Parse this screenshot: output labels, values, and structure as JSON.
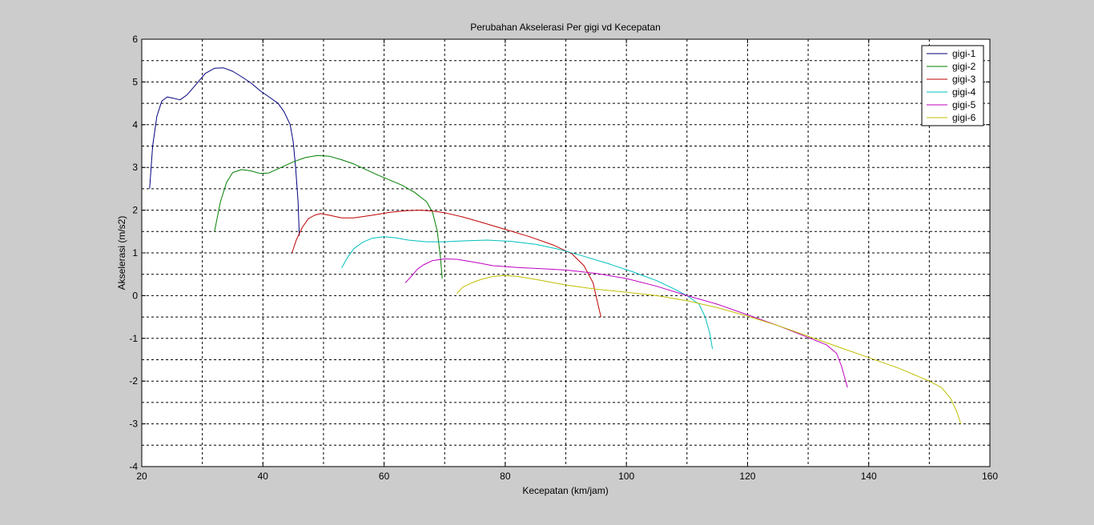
{
  "chart_data": {
    "type": "line",
    "title": "Perubahan Akselerasi Per gigi vd Kecepatan",
    "xlabel": "Kecepatan (km/jam)",
    "ylabel": "Akselerasi (m/s2)",
    "xlim": [
      20,
      160
    ],
    "ylim": [
      -4,
      6
    ],
    "xticks": [
      "20",
      "40",
      "60",
      "80",
      "100",
      "120",
      "140",
      "160"
    ],
    "yticks": [
      "-4",
      "-3",
      "-2",
      "-1",
      "0",
      "1",
      "2",
      "3",
      "4",
      "5",
      "6"
    ],
    "grid": true,
    "legend_position": "top-right",
    "series": [
      {
        "name": "gigi-1",
        "color": "#00007f",
        "x": [
          21.3,
          21.8,
          22.5,
          23.3,
          24.2,
          25.2,
          26.3,
          27.5,
          29.0,
          30.5,
          32.0,
          33.5,
          35.0,
          36.5,
          38.0,
          39.5,
          41.0,
          42.5,
          43.5,
          44.5,
          45.0,
          45.4,
          45.8,
          46.0
        ],
        "y": [
          2.5,
          3.5,
          4.2,
          4.55,
          4.65,
          4.62,
          4.58,
          4.7,
          4.95,
          5.2,
          5.32,
          5.33,
          5.25,
          5.12,
          4.98,
          4.8,
          4.65,
          4.5,
          4.3,
          4.0,
          3.6,
          3.0,
          2.2,
          1.4
        ]
      },
      {
        "name": "gigi-2",
        "color": "#007f00",
        "x": [
          32.0,
          33.0,
          34.0,
          35.0,
          36.5,
          38.0,
          39.5,
          41.0,
          43.0,
          45.0,
          47.0,
          49.0,
          51.0,
          53.0,
          55.0,
          57.0,
          59.0,
          61.0,
          63.0,
          65.0,
          67.0,
          68.0,
          68.8,
          69.3,
          69.6
        ],
        "y": [
          1.5,
          2.2,
          2.65,
          2.88,
          2.95,
          2.92,
          2.86,
          2.87,
          3.0,
          3.13,
          3.23,
          3.28,
          3.26,
          3.18,
          3.08,
          2.95,
          2.82,
          2.7,
          2.58,
          2.42,
          2.2,
          1.95,
          1.5,
          0.9,
          0.4
        ]
      },
      {
        "name": "gigi-3",
        "color": "#bf0000",
        "x": [
          44.8,
          45.5,
          46.5,
          47.5,
          48.5,
          49.5,
          51.0,
          53.0,
          55.0,
          58.0,
          61.0,
          64.0,
          66.0,
          68.0,
          70.0,
          73.0,
          76.0,
          80.0,
          84.0,
          88.0,
          91.0,
          93.0,
          94.5,
          95.3,
          95.8
        ],
        "y": [
          1.0,
          1.3,
          1.6,
          1.8,
          1.88,
          1.92,
          1.88,
          1.82,
          1.82,
          1.88,
          1.95,
          1.99,
          2.0,
          1.98,
          1.94,
          1.84,
          1.72,
          1.55,
          1.38,
          1.18,
          0.98,
          0.7,
          0.3,
          -0.2,
          -0.5
        ]
      },
      {
        "name": "gigi-4",
        "color": "#00bfbf",
        "x": [
          53.0,
          54.0,
          55.0,
          56.5,
          58.0,
          60.0,
          62.0,
          64.0,
          67.0,
          70.0,
          73.0,
          77.0,
          81.0,
          85.0,
          89.0,
          93.0,
          97.0,
          101.0,
          105.0,
          108.0,
          110.0,
          112.0,
          113.0,
          113.8,
          114.2
        ],
        "y": [
          0.65,
          0.9,
          1.1,
          1.25,
          1.34,
          1.38,
          1.35,
          1.3,
          1.26,
          1.26,
          1.28,
          1.3,
          1.27,
          1.2,
          1.08,
          0.92,
          0.75,
          0.56,
          0.35,
          0.15,
          0.0,
          -0.2,
          -0.5,
          -0.9,
          -1.25
        ]
      },
      {
        "name": "gigi-5",
        "color": "#bf00bf",
        "x": [
          63.5,
          64.5,
          65.5,
          66.5,
          68.0,
          70.0,
          72.0,
          75.0,
          78.0,
          82.0,
          86.0,
          90.0,
          95.0,
          100.0,
          105.0,
          110.0,
          115.0,
          120.0,
          125.0,
          130.0,
          133.0,
          134.7,
          135.5,
          136.0,
          136.5
        ],
        "y": [
          0.3,
          0.45,
          0.62,
          0.72,
          0.82,
          0.86,
          0.85,
          0.78,
          0.7,
          0.66,
          0.63,
          0.6,
          0.52,
          0.4,
          0.22,
          0.0,
          -0.2,
          -0.45,
          -0.7,
          -0.98,
          -1.15,
          -1.35,
          -1.65,
          -1.9,
          -2.15
        ]
      },
      {
        "name": "gigi-6",
        "color": "#bfbf00",
        "x": [
          72.0,
          73.0,
          74.5,
          76.0,
          78.0,
          80.0,
          82.0,
          85.0,
          90.0,
          95.0,
          100.0,
          105.0,
          110.0,
          115.0,
          120.0,
          125.0,
          130.0,
          135.0,
          140.0,
          145.0,
          148.0,
          150.0,
          152.0,
          153.5,
          154.5,
          155.2
        ],
        "y": [
          0.05,
          0.2,
          0.3,
          0.38,
          0.45,
          0.47,
          0.45,
          0.38,
          0.25,
          0.15,
          0.08,
          0.0,
          -0.12,
          -0.28,
          -0.48,
          -0.7,
          -0.95,
          -1.2,
          -1.45,
          -1.7,
          -1.88,
          -2.0,
          -2.15,
          -2.4,
          -2.7,
          -3.0
        ]
      }
    ]
  }
}
